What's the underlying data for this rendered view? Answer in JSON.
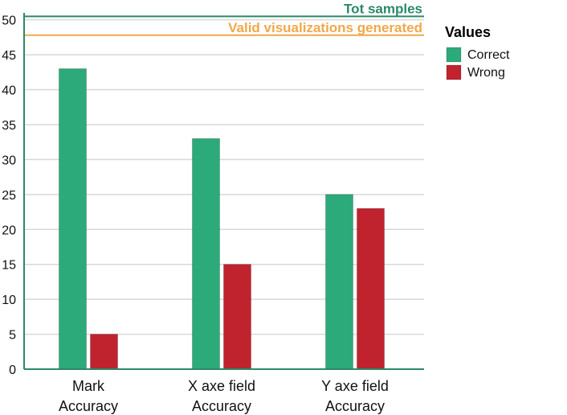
{
  "chart_data": {
    "type": "bar",
    "categories": [
      [
        "Mark",
        "Accuracy"
      ],
      [
        "X axe field",
        "Accuracy"
      ],
      [
        "Y axe field",
        "Accuracy"
      ]
    ],
    "series": [
      {
        "name": "Correct",
        "values": [
          43,
          33,
          25
        ],
        "color": "#2caa7a"
      },
      {
        "name": "Wrong",
        "values": [
          5,
          15,
          23
        ],
        "color": "#c0222e"
      }
    ],
    "ylim": [
      0,
      51
    ],
    "yticks": [
      0,
      5,
      10,
      15,
      20,
      25,
      30,
      35,
      40,
      45,
      50
    ],
    "grid": true,
    "legend": {
      "title": "Values",
      "placement": "right"
    },
    "reference_lines": [
      {
        "label": "Tot samples",
        "value": 50.5,
        "color": "#2a8a66"
      },
      {
        "label": "Valid visualizations generated",
        "value": 47.8,
        "color": "#f0a84a"
      }
    ]
  }
}
